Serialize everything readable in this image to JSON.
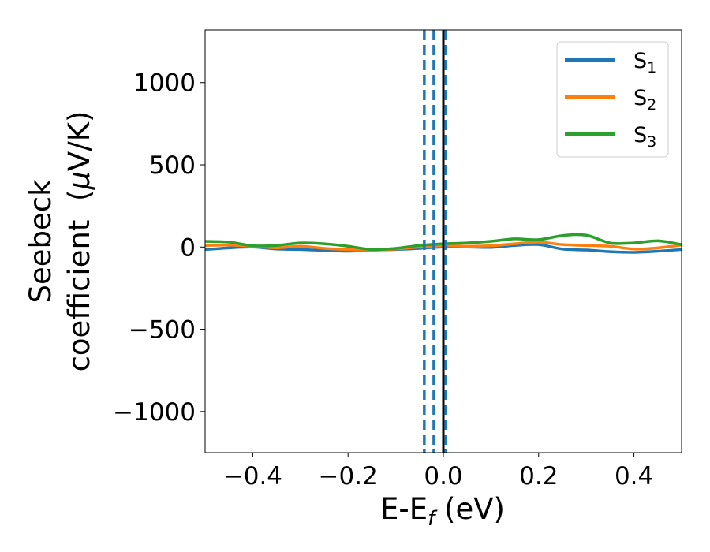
{
  "chart_data": {
    "type": "line",
    "xlabel": "E-E",
    "xlabel_sub": "f",
    "xlabel_unit": " (eV)",
    "ylabel_line1": "Seebeck",
    "ylabel_line2_prefix": "coefficient  (",
    "ylabel_mu": "μ",
    "ylabel_line2_suffix": "V/K)",
    "xlim": [
      -0.5,
      0.5
    ],
    "ylim": [
      -1250,
      1320
    ],
    "x_ticks": [
      -0.4,
      -0.2,
      0.0,
      0.2,
      0.4
    ],
    "x_tick_labels": [
      "−0.4",
      "−0.2",
      "0.0",
      "0.2",
      "0.4"
    ],
    "y_ticks": [
      -1000,
      -500,
      0,
      500,
      1000
    ],
    "y_tick_labels": [
      "−1000",
      "−500",
      "0",
      "500",
      "1000"
    ],
    "grid": false,
    "legend_position": "top-right",
    "series": [
      {
        "name": "S",
        "sub": "1",
        "color": "#1f77b4",
        "x": [
          -0.5,
          -0.45,
          -0.4,
          -0.35,
          -0.3,
          -0.25,
          -0.2,
          -0.15,
          -0.1,
          -0.05,
          0.0,
          0.05,
          0.1,
          0.15,
          0.2,
          0.25,
          0.3,
          0.35,
          0.4,
          0.45,
          0.5
        ],
        "y": [
          -15,
          -5,
          0,
          -12,
          -15,
          -20,
          -25,
          -18,
          -15,
          -8,
          0,
          0,
          -2,
          10,
          15,
          -12,
          -18,
          -28,
          -32,
          -25,
          -15
        ]
      },
      {
        "name": "S",
        "sub": "2",
        "color": "#ff7f0e",
        "x": [
          -0.5,
          -0.45,
          -0.4,
          -0.35,
          -0.3,
          -0.25,
          -0.2,
          -0.15,
          -0.1,
          -0.05,
          0.0,
          0.05,
          0.1,
          0.15,
          0.2,
          0.25,
          0.3,
          0.35,
          0.4,
          0.45,
          0.5
        ],
        "y": [
          10,
          12,
          5,
          -5,
          5,
          -8,
          -15,
          -18,
          -12,
          0,
          8,
          5,
          8,
          20,
          30,
          15,
          10,
          5,
          -12,
          -5,
          12
        ]
      },
      {
        "name": "S",
        "sub": "3",
        "color": "#2ca02c",
        "x": [
          -0.5,
          -0.45,
          -0.4,
          -0.35,
          -0.3,
          -0.25,
          -0.2,
          -0.15,
          -0.1,
          -0.05,
          0.0,
          0.05,
          0.1,
          0.15,
          0.2,
          0.25,
          0.3,
          0.35,
          0.4,
          0.45,
          0.5
        ],
        "y": [
          35,
          30,
          8,
          10,
          25,
          20,
          5,
          -15,
          -8,
          10,
          20,
          25,
          35,
          50,
          45,
          70,
          72,
          25,
          25,
          38,
          15
        ]
      }
    ],
    "vlines": [
      {
        "x": -0.04,
        "color": "#1f77b4",
        "style": "dashed"
      },
      {
        "x": -0.02,
        "color": "#1f77b4",
        "style": "dashed"
      },
      {
        "x": 0.0,
        "color": "#000000",
        "style": "solid"
      },
      {
        "x": 0.005,
        "color": "#1f77b4",
        "style": "dashed"
      }
    ]
  }
}
